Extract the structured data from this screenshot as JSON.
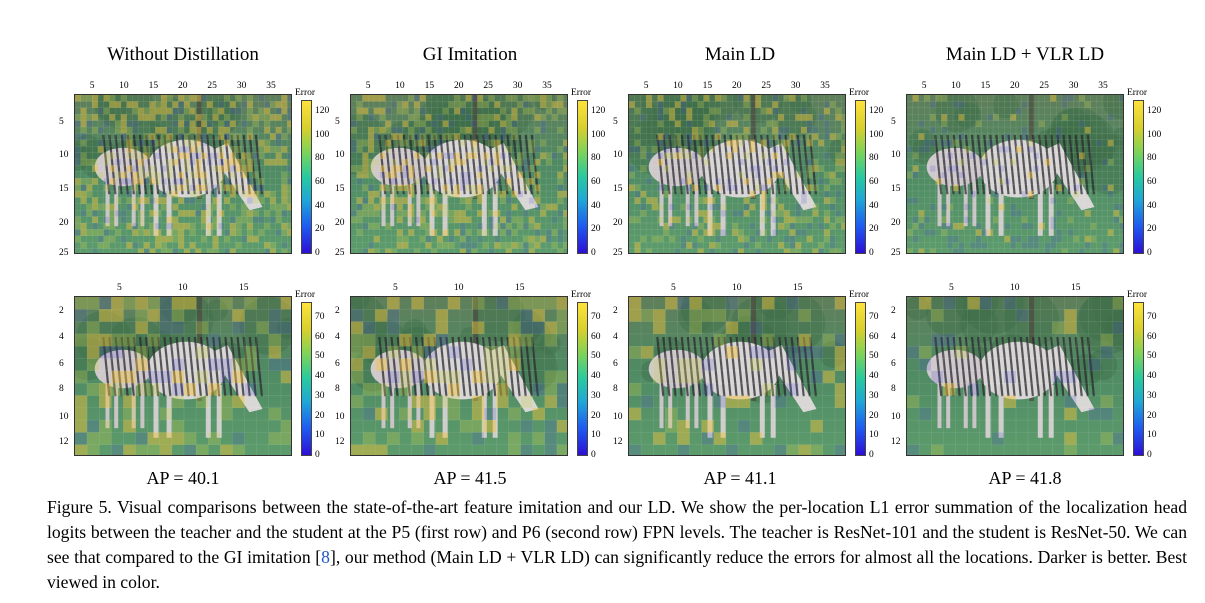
{
  "columns": [
    {
      "title": "Without Distillation",
      "ap": "AP = 40.1"
    },
    {
      "title": "GI Imitation",
      "ap": "AP = 41.5"
    },
    {
      "title": "Main LD",
      "ap": "AP = 41.1"
    },
    {
      "title": "Main LD + VLR LD",
      "ap": "AP = 41.8"
    }
  ],
  "rows": [
    {
      "level": "P5",
      "x_ticks": [
        "5",
        "10",
        "15",
        "20",
        "25",
        "30",
        "35"
      ],
      "y_ticks": [
        "5",
        "10",
        "15",
        "20",
        "25"
      ],
      "colorbar_title": "Error",
      "colorbar_ticks": [
        "120",
        "100",
        "80",
        "60",
        "40",
        "20",
        "0"
      ],
      "colorbar_max": 130
    },
    {
      "level": "P6",
      "x_ticks": [
        "5",
        "10",
        "15"
      ],
      "y_ticks": [
        "2",
        "4",
        "6",
        "8",
        "10",
        "12"
      ],
      "colorbar_title": "Error",
      "colorbar_ticks": [
        "70",
        "60",
        "50",
        "40",
        "30",
        "20",
        "10",
        "0"
      ],
      "colorbar_max": 78
    }
  ],
  "caption": {
    "prefix": "Figure 5.  Visual comparisons between the state-of-the-art feature imitation and our LD. We show the per-location L1 error summation of the localization head logits between the teacher and the student at the P5 (first row) and P6 (second row) FPN levels.  The teacher is ResNet-101 and the student is ResNet-50. We can see that compared to the GI imitation [",
    "ref": "8",
    "suffix": "], our method (Main LD + VLR LD) can significantly reduce the errors for almost all the locations. Darker is better. Best viewed in color."
  }
}
